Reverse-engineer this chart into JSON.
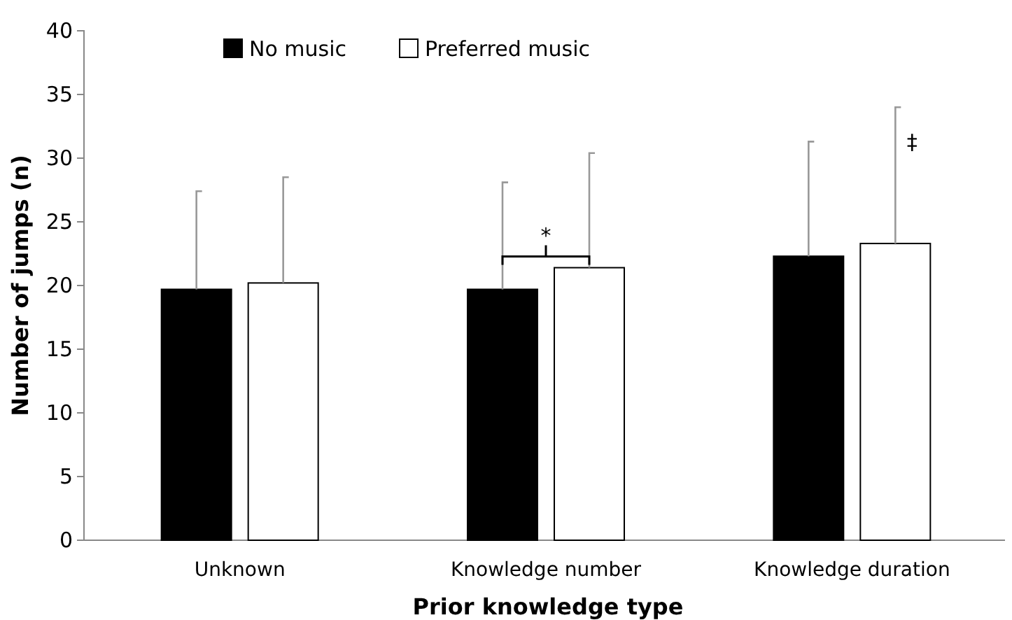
{
  "chart_data": {
    "type": "bar",
    "xlabel": "Prior knowledge type",
    "ylabel": "Number of jumps (n)",
    "categories": [
      "Unknown",
      "Knowledge number",
      "Knowledge duration"
    ],
    "series": [
      {
        "name": "No music",
        "color": "#000000",
        "values": [
          19.7,
          19.7,
          22.3
        ],
        "errors": [
          [
            19.7,
            27.4
          ],
          [
            19.7,
            28.1
          ],
          [
            22.3,
            31.3
          ]
        ]
      },
      {
        "name": "Preferred music",
        "color": "#ffffff",
        "values": [
          20.2,
          21.4,
          23.3
        ],
        "errors": [
          [
            20.2,
            28.5
          ],
          [
            21.4,
            30.4
          ],
          [
            23.3,
            34.0
          ]
        ]
      }
    ],
    "ylim": [
      0,
      40
    ],
    "yticks": [
      0,
      5,
      10,
      15,
      20,
      25,
      30,
      35,
      40
    ],
    "grid": false,
    "legend": "top",
    "annotations": [
      "*",
      "‡"
    ]
  }
}
